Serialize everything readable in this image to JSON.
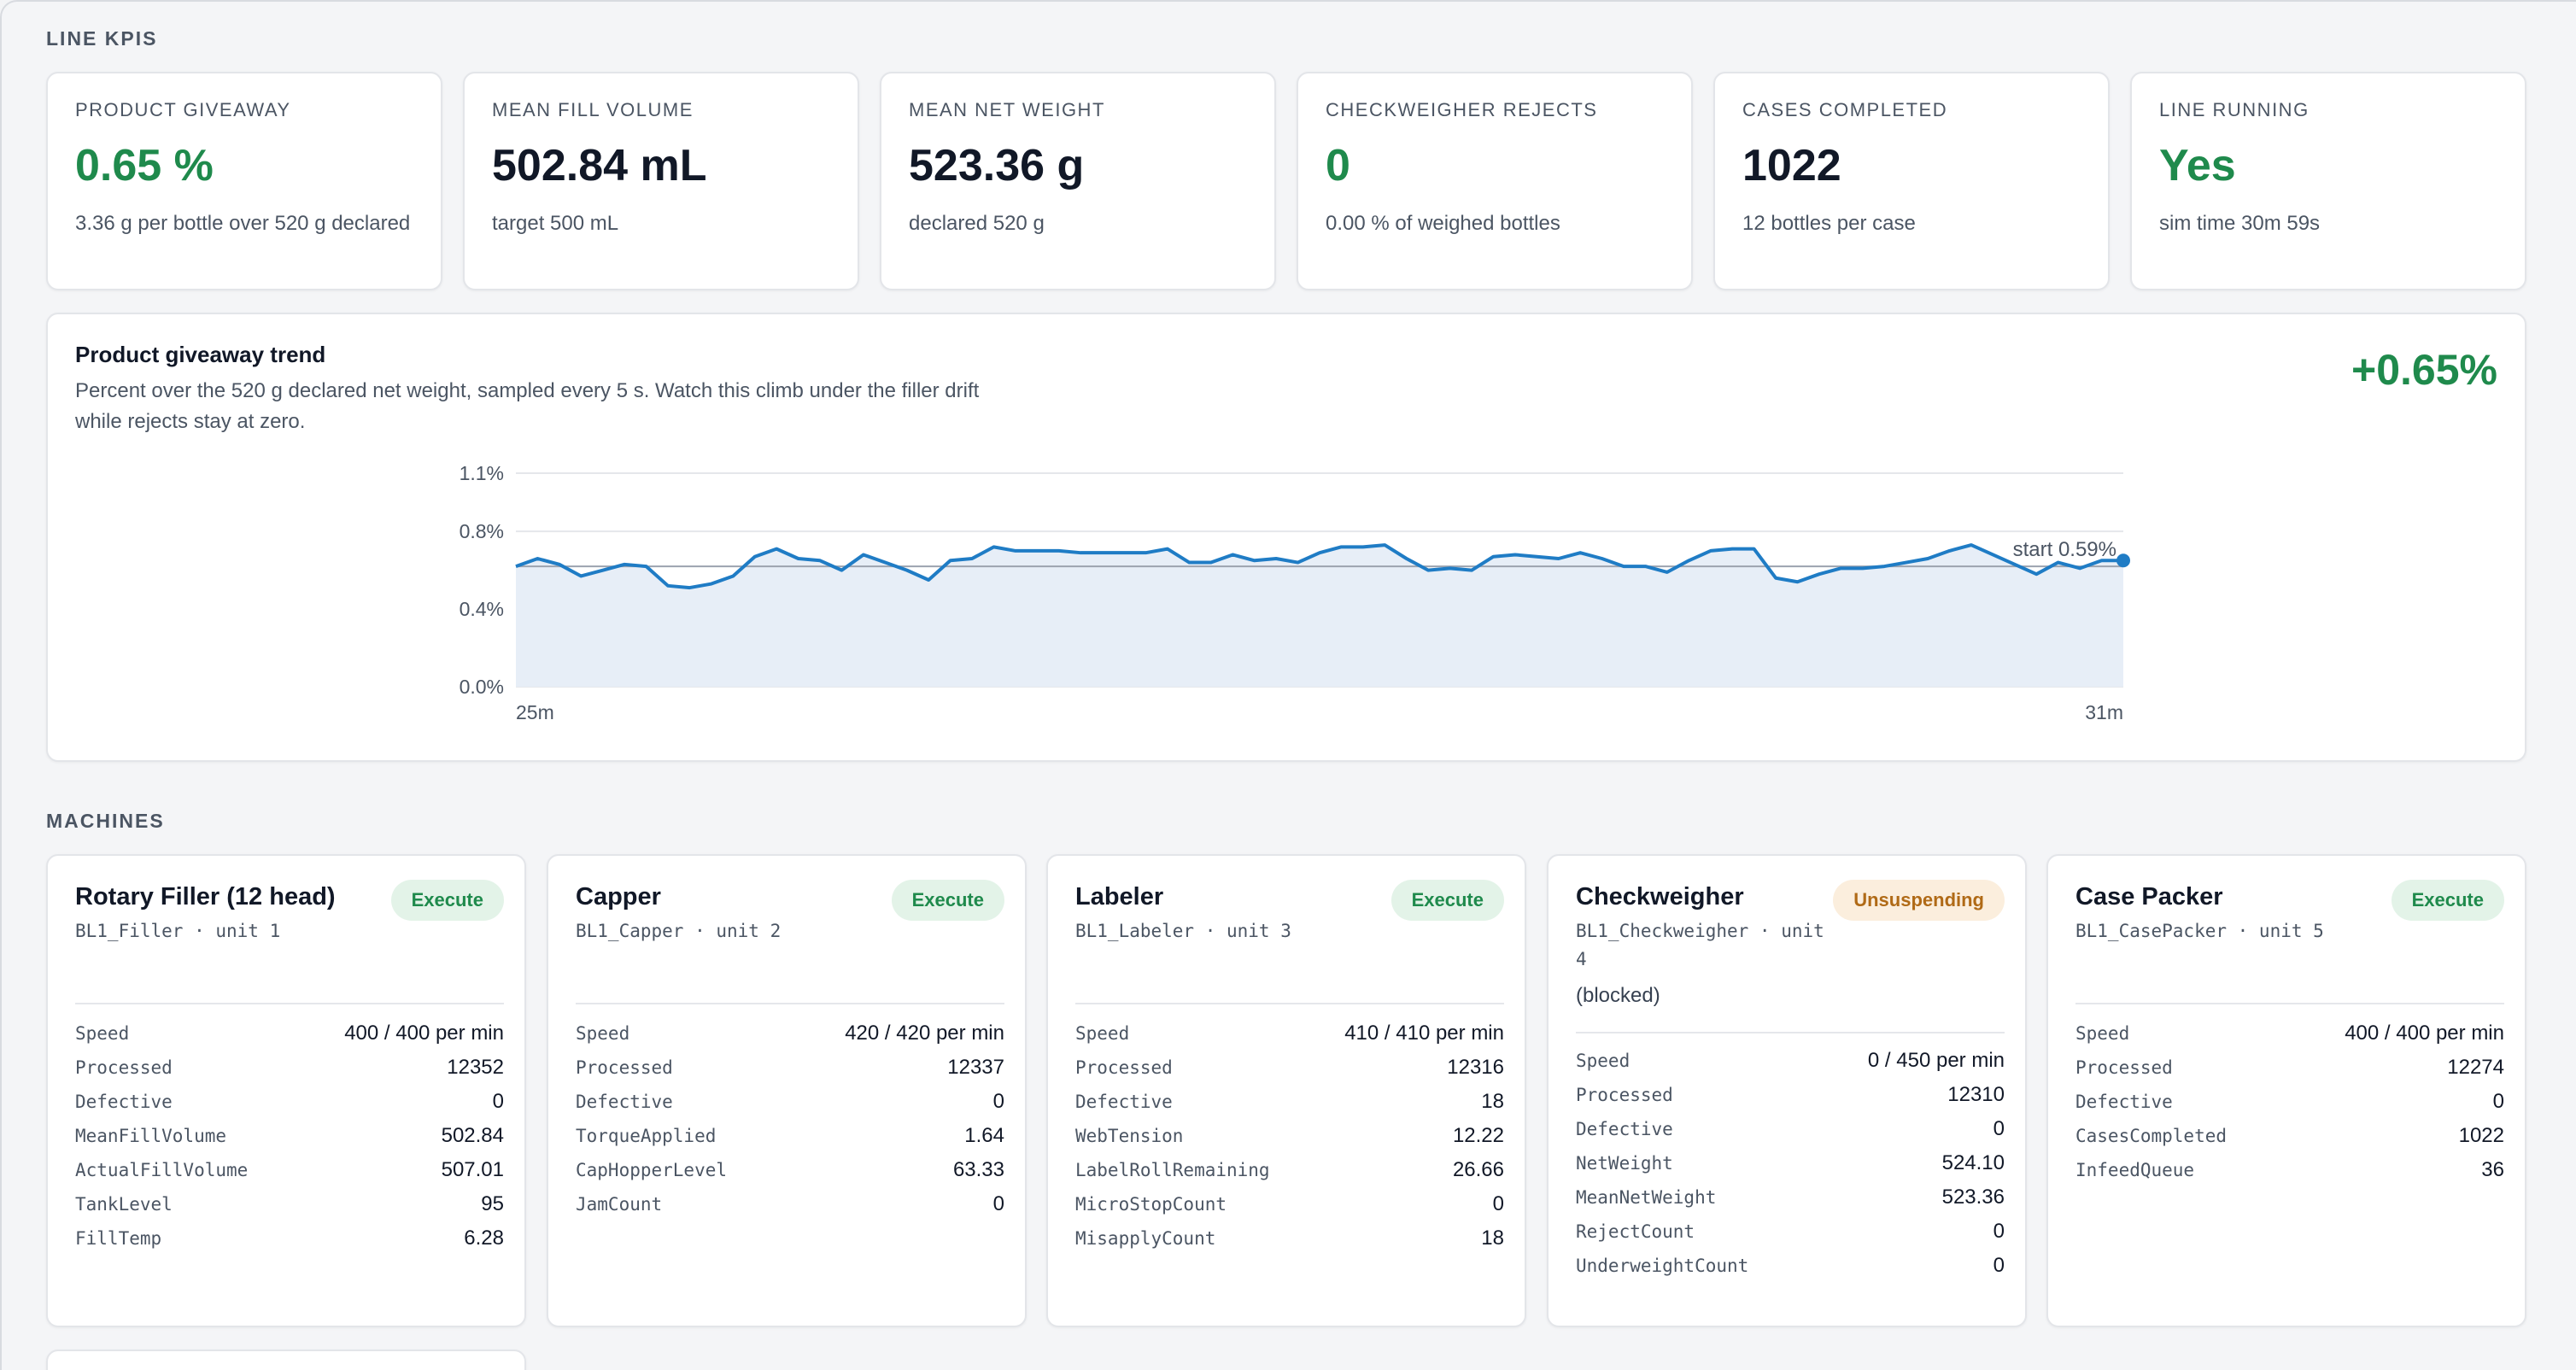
{
  "sections": {
    "kpis": "LINE KPIS",
    "machines": "MACHINES"
  },
  "colors": {
    "accent_green": "#1f8a4c",
    "line_blue": "#1f7cc5",
    "warn_orange": "#b06a16"
  },
  "kpis": [
    {
      "label": "PRODUCT GIVEAWAY",
      "value": "0.65 %",
      "sub": "3.36 g per bottle over 520 g declared",
      "green": true
    },
    {
      "label": "MEAN FILL VOLUME",
      "value": "502.84 mL",
      "sub": "target 500 mL",
      "green": false
    },
    {
      "label": "MEAN NET WEIGHT",
      "value": "523.36 g",
      "sub": "declared 520 g",
      "green": false
    },
    {
      "label": "CHECKWEIGHER REJECTS",
      "value": "0",
      "sub": "0.00 % of weighed bottles",
      "green": true
    },
    {
      "label": "CASES COMPLETED",
      "value": "1022",
      "sub": "12 bottles per case",
      "green": false
    },
    {
      "label": "LINE RUNNING",
      "value": "Yes",
      "sub": "sim time 30m 59s",
      "green": true
    }
  ],
  "trend": {
    "title": "Product giveaway trend",
    "description": "Percent over the 520 g declared net weight, sampled every 5 s. Watch this climb under the filler drift while rejects stay at zero.",
    "current": "+0.65%",
    "start_label": "start 0.59%"
  },
  "chart_data": {
    "type": "area",
    "ylim": [
      0,
      1.1
    ],
    "xlim": [
      25,
      31
    ],
    "yticks": [
      "1.1%",
      "0.8%",
      "0.4%",
      "0.0%"
    ],
    "ytick_values": [
      1.1,
      0.8,
      0.4,
      0.0
    ],
    "xticks": [
      "25m",
      "31m"
    ],
    "reference_line": 0.62,
    "series": [
      {
        "values": [
          0.62,
          0.66,
          0.63,
          0.57,
          0.6,
          0.63,
          0.62,
          0.52,
          0.51,
          0.53,
          0.57,
          0.67,
          0.71,
          0.66,
          0.65,
          0.6,
          0.68,
          0.64,
          0.6,
          0.55,
          0.65,
          0.66,
          0.72,
          0.7,
          0.7,
          0.7,
          0.69,
          0.69,
          0.69,
          0.69,
          0.71,
          0.64,
          0.64,
          0.68,
          0.65,
          0.66,
          0.64,
          0.69,
          0.72,
          0.72,
          0.73,
          0.66,
          0.6,
          0.61,
          0.6,
          0.67,
          0.68,
          0.67,
          0.66,
          0.69,
          0.66,
          0.62,
          0.62,
          0.59,
          0.65,
          0.7,
          0.71,
          0.71,
          0.56,
          0.54,
          0.58,
          0.61,
          0.61,
          0.62,
          0.64,
          0.66,
          0.7,
          0.73,
          0.68,
          0.63,
          0.58,
          0.64,
          0.61,
          0.65,
          0.65
        ]
      }
    ]
  },
  "machines": [
    {
      "name": "Rotary Filler (12 head)",
      "sub": "BL1_Filler · unit 1",
      "note": "",
      "state": "Execute",
      "state_kind": "execute",
      "rows": [
        [
          "Speed",
          "400 / 400 per min"
        ],
        [
          "Processed",
          "12352"
        ],
        [
          "Defective",
          "0"
        ],
        [
          "MeanFillVolume",
          "502.84"
        ],
        [
          "ActualFillVolume",
          "507.01"
        ],
        [
          "TankLevel",
          "95"
        ],
        [
          "FillTemp",
          "6.28"
        ]
      ]
    },
    {
      "name": "Capper",
      "sub": "BL1_Capper · unit 2",
      "note": "",
      "state": "Execute",
      "state_kind": "execute",
      "rows": [
        [
          "Speed",
          "420 / 420 per min"
        ],
        [
          "Processed",
          "12337"
        ],
        [
          "Defective",
          "0"
        ],
        [
          "TorqueApplied",
          "1.64"
        ],
        [
          "CapHopperLevel",
          "63.33"
        ],
        [
          "JamCount",
          "0"
        ]
      ]
    },
    {
      "name": "Labeler",
      "sub": "BL1_Labeler · unit 3",
      "note": "",
      "state": "Execute",
      "state_kind": "execute",
      "rows": [
        [
          "Speed",
          "410 / 410 per min"
        ],
        [
          "Processed",
          "12316"
        ],
        [
          "Defective",
          "18"
        ],
        [
          "WebTension",
          "12.22"
        ],
        [
          "LabelRollRemaining",
          "26.66"
        ],
        [
          "MicroStopCount",
          "0"
        ],
        [
          "MisapplyCount",
          "18"
        ]
      ]
    },
    {
      "name": "Checkweigher",
      "sub": "BL1_Checkweigher · unit 4",
      "note": "(blocked)",
      "state": "Unsuspending",
      "state_kind": "unsusp",
      "rows": [
        [
          "Speed",
          "0 / 450 per min"
        ],
        [
          "Processed",
          "12310"
        ],
        [
          "Defective",
          "0"
        ],
        [
          "NetWeight",
          "524.10"
        ],
        [
          "MeanNetWeight",
          "523.36"
        ],
        [
          "RejectCount",
          "0"
        ],
        [
          "UnderweightCount",
          "0"
        ]
      ]
    },
    {
      "name": "Case Packer",
      "sub": "BL1_CasePacker · unit 5",
      "note": "",
      "state": "Execute",
      "state_kind": "execute",
      "rows": [
        [
          "Speed",
          "400 / 400 per min"
        ],
        [
          "Processed",
          "12274"
        ],
        [
          "Defective",
          "0"
        ],
        [
          "CasesCompleted",
          "1022"
        ],
        [
          "InfeedQueue",
          "36"
        ]
      ]
    }
  ]
}
